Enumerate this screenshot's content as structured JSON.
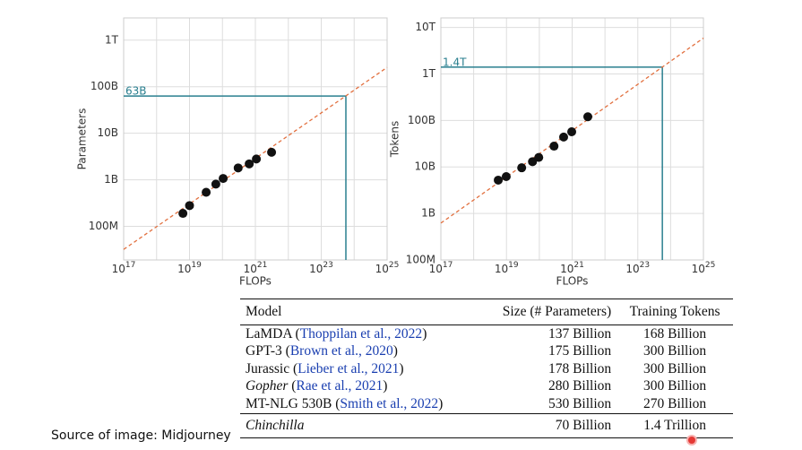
{
  "chart_data": [
    {
      "type": "scatter",
      "xlabel": "FLOPs",
      "ylabel": "Parameters",
      "xscale": "log",
      "yscale": "log",
      "grid": true,
      "xlim": [
        1e+17,
        1e+25
      ],
      "ylim": [
        19000000.0,
        3000000000000.0
      ],
      "xticks": [
        {
          "value": 1e+17,
          "label": "10^17"
        },
        {
          "value": 1e+19,
          "label": "10^19"
        },
        {
          "value": 1e+21,
          "label": "10^21"
        },
        {
          "value": 1e+23,
          "label": "10^23"
        },
        {
          "value": 1e+25,
          "label": "10^25"
        }
      ],
      "xminor": [
        1e+18,
        1e+20,
        1e+22,
        1e+24
      ],
      "yticks": [
        {
          "value": 100000000.0,
          "label": "100M"
        },
        {
          "value": 1000000000.0,
          "label": "1B"
        },
        {
          "value": 10000000000.0,
          "label": "10B"
        },
        {
          "value": 100000000000.0,
          "label": "100B"
        },
        {
          "value": 1000000000000.0,
          "label": "1T"
        }
      ],
      "series": [
        {
          "color": "#111111",
          "x": [
            6.3e+18,
            1e+19,
            3.2e+19,
            6.3e+19,
            1.05e+20,
            3e+20,
            6.5e+20,
            1.07e+21,
            3.1e+21
          ],
          "values": [
            190000000.0,
            280000000.0,
            540000000.0,
            810000000.0,
            1070000000.0,
            1800000000.0,
            2200000000.0,
            2800000000.0,
            3900000000.0
          ]
        }
      ],
      "fit": {
        "color": "#e2703f",
        "x": [
          1e+17,
          1e+25
        ],
        "values": [
          32000000.0,
          260000000000.0
        ]
      },
      "guide": {
        "color": "#2a7f8f",
        "label": "63B",
        "x": 5.6e+23,
        "y": 63000000000.0
      }
    },
    {
      "type": "scatter",
      "xlabel": "FLOPs",
      "ylabel": "Tokens",
      "xscale": "log",
      "yscale": "log",
      "grid": true,
      "xlim": [
        1e+17,
        1e+25
      ],
      "ylim": [
        100000000.0,
        16000000000000.0
      ],
      "xticks": [
        {
          "value": 1e+17,
          "label": "10^17"
        },
        {
          "value": 1e+19,
          "label": "10^19"
        },
        {
          "value": 1e+21,
          "label": "10^21"
        },
        {
          "value": 1e+23,
          "label": "10^23"
        },
        {
          "value": 1e+25,
          "label": "10^25"
        }
      ],
      "xminor": [
        1e+18,
        1e+20,
        1e+22,
        1e+24
      ],
      "yticks": [
        {
          "value": 100000000.0,
          "label": "100M"
        },
        {
          "value": 1000000000.0,
          "label": "1B"
        },
        {
          "value": 10000000000.0,
          "label": "10B"
        },
        {
          "value": 100000000000.0,
          "label": "100B"
        },
        {
          "value": 1000000000000.0,
          "label": "1T"
        },
        {
          "value": 10000000000000.0,
          "label": "10T"
        }
      ],
      "series": [
        {
          "color": "#111111",
          "x": [
            5.6e+18,
            9.8e+18,
            2.9e+19,
            6.2e+19,
            9.6e+19,
            2.8e+20,
            5.5e+20,
            9.7e+20,
            3e+21
          ],
          "values": [
            5200000000.0,
            6200000000.0,
            9600000000.0,
            13000000000.0,
            16000000000.0,
            28000000000.0,
            44000000000.0,
            57000000000.0,
            120000000000.0
          ]
        }
      ],
      "fit": {
        "color": "#e2703f",
        "x": [
          1e+17,
          1e+25
        ],
        "values": [
          620000000.0,
          5900000000000.0
        ]
      },
      "guide": {
        "color": "#2a7f8f",
        "label": "1.4T",
        "x": 5.6e+23,
        "y": 1400000000000.0
      }
    }
  ],
  "table": {
    "header": [
      "Model",
      "Size (# Parameters)",
      "Training Tokens"
    ],
    "rows": [
      {
        "model": "LaMDA",
        "citation": "Thoppilan et al., 2022",
        "size": "137 Billion",
        "tokens": "168 Billion"
      },
      {
        "model": "GPT-3",
        "citation": "Brown et al., 2020",
        "size": "175 Billion",
        "tokens": "300 Billion"
      },
      {
        "model": "Jurassic",
        "citation": "Lieber et al., 2021",
        "size": "178 Billion",
        "tokens": "300 Billion"
      },
      {
        "model": "Gopher",
        "style": "italic",
        "citation": "Rae et al., 2021",
        "size": "280 Billion",
        "tokens": "300 Billion"
      },
      {
        "model": "MT-NLG 530B",
        "citation": "Smith et al., 2022",
        "size": "530 Billion",
        "tokens": "270 Billion"
      },
      {
        "model": "Chinchilla",
        "style": "italic",
        "size": "70 Billion",
        "tokens": "1.4 Trillion"
      }
    ]
  },
  "source": "Source of image: Midjourney"
}
